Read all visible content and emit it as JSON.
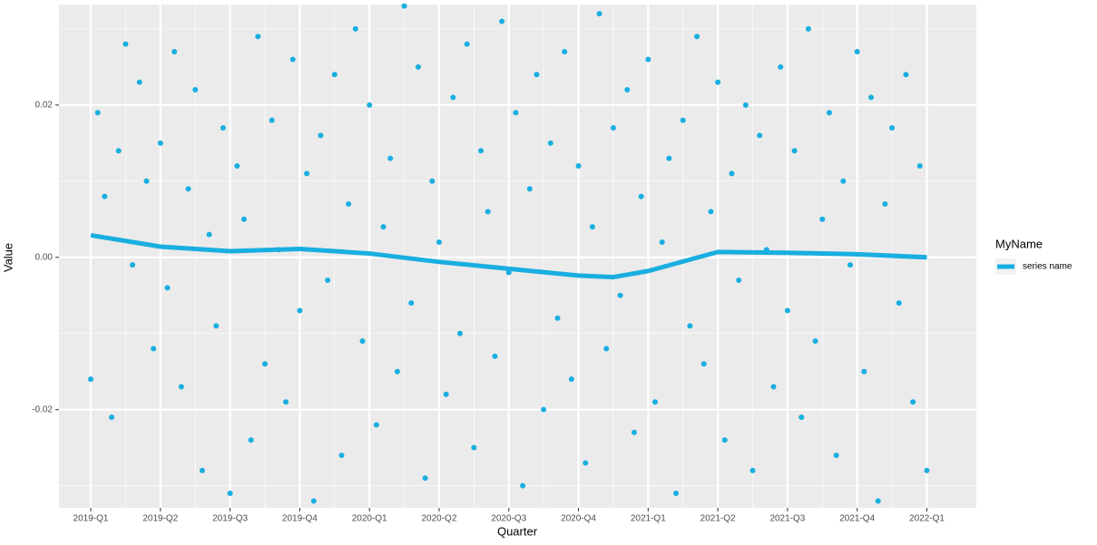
{
  "chart_data": {
    "type": "scatter",
    "x_label": "Quarter",
    "y_label": "Value",
    "legend_title": "MyName",
    "legend_position": "right",
    "grid": true,
    "xlim": [
      -0.456,
      12.71
    ],
    "ylim": [
      -0.0329,
      0.0332
    ],
    "xticks": [
      {
        "value": 0,
        "label": "2019-Q1"
      },
      {
        "value": 1,
        "label": "2019-Q2"
      },
      {
        "value": 2,
        "label": "2019-Q3"
      },
      {
        "value": 3,
        "label": "2019-Q4"
      },
      {
        "value": 4,
        "label": "2020-Q1"
      },
      {
        "value": 5,
        "label": "2020-Q2"
      },
      {
        "value": 6,
        "label": "2020-Q3"
      },
      {
        "value": 7,
        "label": "2020-Q4"
      },
      {
        "value": 8,
        "label": "2021-Q1"
      },
      {
        "value": 9,
        "label": "2021-Q2"
      },
      {
        "value": 10,
        "label": "2021-Q3"
      },
      {
        "value": 11,
        "label": "2021-Q4"
      },
      {
        "value": 12,
        "label": "2022-Q1"
      }
    ],
    "yticks": [
      -0.02,
      {
        "value": 0,
        "label": "0.00"
      },
      0.02
    ],
    "points": {
      "color": "#19aee0",
      "x": [
        0,
        0.1,
        0.2,
        0.3,
        0.4,
        0.5,
        0.6,
        0.7,
        0.8,
        0.9,
        1,
        1.1,
        1.2,
        1.3,
        1.4,
        1.5,
        1.6,
        1.7,
        1.8,
        1.9,
        2,
        2.1,
        2.2,
        2.3,
        2.4,
        2.5,
        2.6,
        2.7,
        2.8,
        2.9,
        3,
        3.1,
        3.2,
        3.3,
        3.4,
        3.5,
        3.6,
        3.7,
        3.8,
        3.9,
        4,
        4.1,
        4.2,
        4.3,
        4.4,
        4.5,
        4.6,
        4.7,
        4.8,
        4.9,
        5,
        5.1,
        5.2,
        5.3,
        5.4,
        5.5,
        5.6,
        5.7,
        5.8,
        5.9,
        6,
        6.1,
        6.2,
        6.3,
        6.4,
        6.5,
        6.6,
        6.7,
        6.8,
        6.9,
        7,
        7.1,
        7.2,
        7.3,
        7.4,
        7.5,
        7.6,
        7.7,
        7.8,
        7.9,
        8,
        8.1,
        8.2,
        8.3,
        8.4,
        8.5,
        8.6,
        8.7,
        8.8,
        8.9,
        9,
        9.1,
        9.2,
        9.3,
        9.4,
        9.5,
        9.6,
        9.7,
        9.8,
        9.9,
        10,
        10.1,
        10.2,
        10.3,
        10.4,
        10.5,
        10.6,
        10.7,
        10.8,
        10.9,
        11,
        11.1,
        11.2,
        11.3,
        11.4,
        11.5,
        11.6,
        11.7,
        11.8,
        11.9,
        12
      ],
      "values": [
        -0.016,
        0.019,
        0.008,
        -0.021,
        0.014,
        0.028,
        -0.001,
        0.023,
        0.01,
        -0.012,
        0.015,
        -0.004,
        0.027,
        -0.017,
        0.009,
        0.022,
        -0.028,
        0.003,
        -0.009,
        0.017,
        -0.031,
        0.012,
        0.005,
        -0.024,
        0.029,
        -0.014,
        0.018,
        0.001,
        -0.019,
        0.026,
        -0.007,
        0.011,
        -0.032,
        0.016,
        -0.003,
        0.024,
        -0.026,
        0.007,
        0.03,
        -0.011,
        0.02,
        -0.022,
        0.004,
        0.013,
        -0.015,
        0.033,
        -0.006,
        0.025,
        -0.029,
        0.01,
        0.002,
        -0.018,
        0.021,
        -0.01,
        0.028,
        -0.025,
        0.014,
        0.006,
        -0.013,
        0.031,
        -0.002,
        0.019,
        -0.03,
        0.009,
        0.024,
        -0.02,
        0.015,
        -0.008,
        0.027,
        -0.016,
        0.012,
        -0.027,
        0.004,
        0.032,
        -0.012,
        0.017,
        -0.005,
        0.022,
        -0.023,
        0.008,
        0.026,
        -0.019,
        0.002,
        0.013,
        -0.031,
        0.018,
        -0.009,
        0.029,
        -0.014,
        0.006,
        0.023,
        -0.024,
        0.011,
        -0.003,
        0.02,
        -0.028,
        0.016,
        0.001,
        -0.017,
        0.025,
        -0.007,
        0.014,
        -0.021,
        0.03,
        -0.011,
        0.005,
        0.019,
        -0.026,
        0.01,
        -0.001,
        0.027,
        -0.015,
        0.021,
        -0.032,
        0.007,
        0.017,
        -0.006,
        0.024,
        -0.019,
        0.012,
        -0.028
      ]
    },
    "series": [
      {
        "name": "series name",
        "color": "#19aee0",
        "x": [
          0,
          1,
          2,
          3,
          4,
          5,
          6,
          7,
          7.5,
          8,
          9,
          10,
          11,
          12
        ],
        "values": [
          0.0029,
          0.0014,
          0.0008,
          0.0011,
          0.0005,
          -0.0006,
          -0.0015,
          -0.0024,
          -0.0026,
          -0.0018,
          0.0007,
          0.0006,
          0.0004,
          0.0
        ]
      }
    ]
  }
}
